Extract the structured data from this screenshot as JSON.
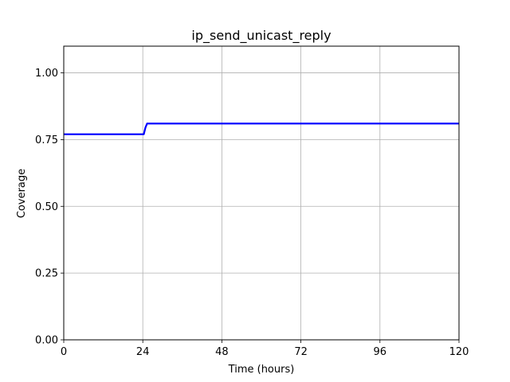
{
  "chart_data": {
    "type": "line",
    "title": "ip_send_unicast_reply",
    "xlabel": "Time (hours)",
    "ylabel": "Coverage",
    "xlim": [
      0,
      120
    ],
    "ylim": [
      0,
      1.1
    ],
    "xticks": [
      0,
      24,
      48,
      72,
      96,
      120
    ],
    "xtick_labels": [
      "0",
      "24",
      "48",
      "72",
      "96",
      "120"
    ],
    "yticks": [
      0,
      0.25,
      0.5,
      0.75,
      1.0
    ],
    "ytick_labels": [
      "0.00",
      "0.25",
      "0.50",
      "0.75",
      "1.00"
    ],
    "grid": true,
    "series": [
      {
        "color": "#0000ff",
        "x": [
          0,
          24.3,
          24.8,
          25.3,
          120
        ],
        "y": [
          0.77,
          0.77,
          0.795,
          0.81,
          0.81
        ]
      }
    ]
  }
}
